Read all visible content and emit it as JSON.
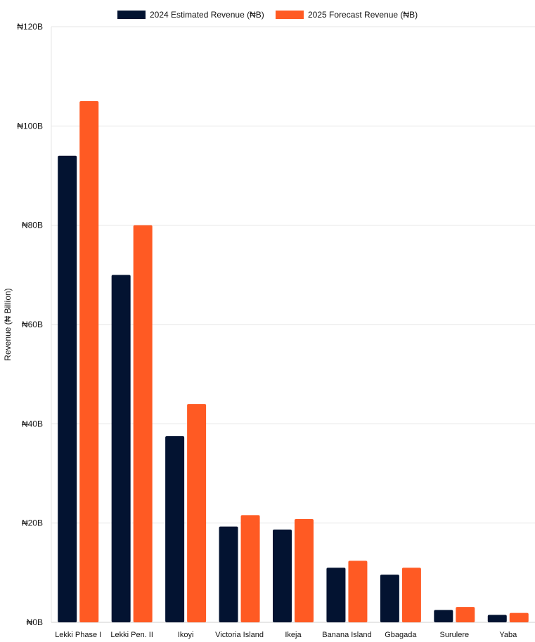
{
  "chart_data": {
    "type": "bar",
    "title": "",
    "xlabel": "",
    "ylabel": "Revenue (₦ Billion)",
    "ylim": [
      0,
      120
    ],
    "yticks": [
      0,
      20,
      40,
      60,
      80,
      100,
      120
    ],
    "ytick_labels": [
      "₦0B",
      "₦20B",
      "₦40B",
      "₦60B",
      "₦80B",
      "₦100B",
      "₦120B"
    ],
    "grid": true,
    "legend_position": "top-center",
    "categories": [
      "Lekki Phase I",
      "Lekki Pen. II",
      "Ikoyi",
      "Victoria Island",
      "Ikeja",
      "Banana Island",
      "Gbagada",
      "Surulere",
      "Yaba"
    ],
    "series": [
      {
        "name": "2024 Estimated Revenue (₦B)",
        "color": "#031331",
        "values": [
          94,
          70,
          37.5,
          19.3,
          18.7,
          11,
          9.6,
          2.5,
          1.5
        ]
      },
      {
        "name": "2025 Forecast Revenue (₦B)",
        "color": "#ff5a23",
        "values": [
          105,
          80,
          44,
          21.6,
          20.8,
          12.4,
          11,
          3.1,
          1.9
        ]
      }
    ]
  }
}
